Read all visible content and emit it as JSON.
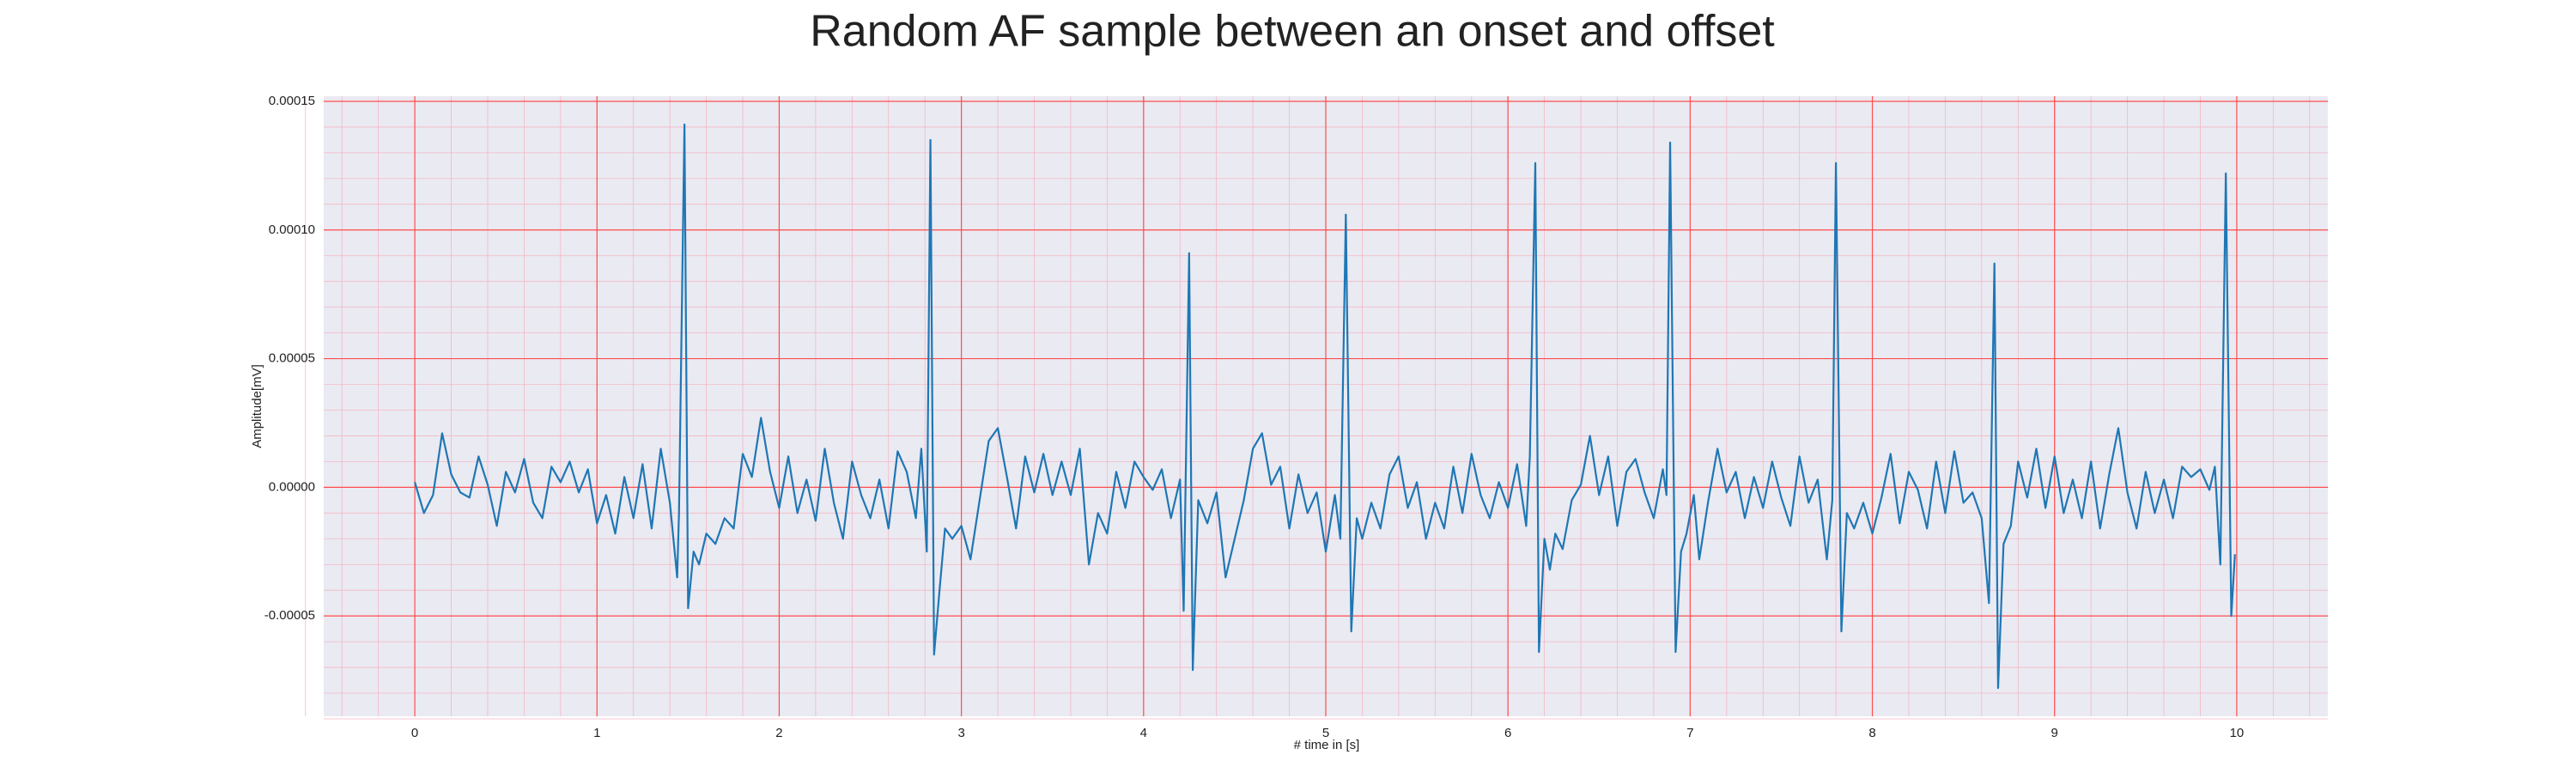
{
  "chart_data": {
    "type": "line",
    "title": "Random AF sample between an onset and offset",
    "xlabel": "# time in [s]",
    "ylabel": "Amplitude[mV]",
    "x": [
      0.0,
      0.05,
      0.1,
      0.15,
      0.2,
      0.25,
      0.3,
      0.35,
      0.4,
      0.45,
      0.5,
      0.55,
      0.6,
      0.65,
      0.7,
      0.75,
      0.8,
      0.85,
      0.9,
      0.95,
      1.0,
      1.05,
      1.1,
      1.15,
      1.2,
      1.25,
      1.3,
      1.35,
      1.4,
      1.44,
      1.45,
      1.48,
      1.5,
      1.53,
      1.56,
      1.6,
      1.65,
      1.7,
      1.75,
      1.8,
      1.85,
      1.9,
      1.95,
      2.0,
      2.05,
      2.1,
      2.15,
      2.2,
      2.25,
      2.3,
      2.35,
      2.4,
      2.45,
      2.5,
      2.55,
      2.6,
      2.65,
      2.7,
      2.75,
      2.78,
      2.81,
      2.83,
      2.85,
      2.88,
      2.91,
      2.95,
      3.0,
      3.05,
      3.1,
      3.15,
      3.2,
      3.25,
      3.3,
      3.35,
      3.4,
      3.45,
      3.5,
      3.55,
      3.6,
      3.65,
      3.7,
      3.75,
      3.8,
      3.85,
      3.9,
      3.95,
      4.0,
      4.05,
      4.1,
      4.15,
      4.2,
      4.22,
      4.25,
      4.27,
      4.3,
      4.35,
      4.4,
      4.45,
      4.5,
      4.55,
      4.6,
      4.65,
      4.7,
      4.75,
      4.8,
      4.85,
      4.9,
      4.95,
      5.0,
      5.05,
      5.08,
      5.11,
      5.14,
      5.17,
      5.2,
      5.25,
      5.3,
      5.35,
      5.4,
      5.45,
      5.5,
      5.55,
      5.6,
      5.65,
      5.7,
      5.75,
      5.8,
      5.85,
      5.9,
      5.95,
      6.0,
      6.05,
      6.1,
      6.12,
      6.15,
      6.17,
      6.2,
      6.23,
      6.26,
      6.3,
      6.35,
      6.4,
      6.45,
      6.5,
      6.55,
      6.6,
      6.65,
      6.7,
      6.75,
      6.8,
      6.85,
      6.87,
      6.89,
      6.92,
      6.95,
      6.98,
      7.02,
      7.05,
      7.1,
      7.15,
      7.2,
      7.25,
      7.3,
      7.35,
      7.4,
      7.45,
      7.5,
      7.55,
      7.6,
      7.65,
      7.7,
      7.75,
      7.78,
      7.8,
      7.83,
      7.86,
      7.9,
      7.95,
      8.0,
      8.05,
      8.1,
      8.15,
      8.2,
      8.25,
      8.3,
      8.35,
      8.4,
      8.45,
      8.5,
      8.55,
      8.6,
      8.64,
      8.67,
      8.69,
      8.72,
      8.76,
      8.8,
      8.85,
      8.9,
      8.95,
      9.0,
      9.05,
      9.1,
      9.15,
      9.2,
      9.25,
      9.3,
      9.35,
      9.4,
      9.45,
      9.5,
      9.55,
      9.6,
      9.65,
      9.7,
      9.75,
      9.8,
      9.85,
      9.88,
      9.91,
      9.94,
      9.97,
      9.99
    ],
    "series": [
      {
        "color": "#1f77b4",
        "values": [
          2e-06,
          -1e-05,
          -3e-06,
          2.1e-05,
          5e-06,
          -2e-06,
          -4e-06,
          1.2e-05,
          1e-06,
          -1.5e-05,
          6e-06,
          -2e-06,
          1.1e-05,
          -6e-06,
          -1.2e-05,
          8e-06,
          2e-06,
          1e-05,
          -2e-06,
          7e-06,
          -1.4e-05,
          -3e-06,
          -1.8e-05,
          4e-06,
          -1.2e-05,
          9e-06,
          -1.6e-05,
          1.5e-05,
          -6e-06,
          -3.5e-05,
          -1e-05,
          0.000141,
          -4.7e-05,
          -2.5e-05,
          -3e-05,
          -1.8e-05,
          -2.2e-05,
          -1.2e-05,
          -1.6e-05,
          1.3e-05,
          4e-06,
          2.7e-05,
          6e-06,
          -8e-06,
          1.2e-05,
          -1e-05,
          3e-06,
          -1.3e-05,
          1.5e-05,
          -6e-06,
          -2e-05,
          1e-05,
          -3e-06,
          -1.2e-05,
          3e-06,
          -1.6e-05,
          1.4e-05,
          6e-06,
          -1.2e-05,
          1.5e-05,
          -2.5e-05,
          0.000135,
          -6.5e-05,
          -4e-05,
          -1.6e-05,
          -2e-05,
          -1.5e-05,
          -2.8e-05,
          -5e-06,
          1.8e-05,
          2.3e-05,
          4e-06,
          -1.6e-05,
          1.2e-05,
          -2e-06,
          1.3e-05,
          -3e-06,
          1e-05,
          -3e-06,
          1.5e-05,
          -3e-05,
          -1e-05,
          -1.8e-05,
          6e-06,
          -8e-06,
          1e-05,
          4e-06,
          -1e-06,
          7e-06,
          -1.2e-05,
          3e-06,
          -4.8e-05,
          9.1e-05,
          -7.1e-05,
          -5e-06,
          -1.4e-05,
          -2e-06,
          -3.5e-05,
          -2e-05,
          -5e-06,
          1.5e-05,
          2.1e-05,
          1e-06,
          8e-06,
          -1.6e-05,
          5e-06,
          -1e-05,
          -2e-06,
          -2.5e-05,
          -3e-06,
          -2e-05,
          0.000106,
          -5.6e-05,
          -1.2e-05,
          -2e-05,
          -6e-06,
          -1.6e-05,
          5e-06,
          1.2e-05,
          -8e-06,
          2e-06,
          -2e-05,
          -6e-06,
          -1.6e-05,
          8e-06,
          -1e-05,
          1.3e-05,
          -3e-06,
          -1.2e-05,
          2e-06,
          -8e-06,
          9e-06,
          -1.5e-05,
          1.2e-05,
          0.000126,
          -6.4e-05,
          -2e-05,
          -3.2e-05,
          -1.8e-05,
          -2.4e-05,
          -5e-06,
          1e-06,
          2e-05,
          -3e-06,
          1.2e-05,
          -1.5e-05,
          6e-06,
          1.1e-05,
          -2e-06,
          -1.2e-05,
          7e-06,
          -3e-06,
          0.000134,
          -6.4e-05,
          -2.5e-05,
          -1.8e-05,
          -3e-06,
          -2.8e-05,
          -5e-06,
          1.5e-05,
          -2e-06,
          6e-06,
          -1.2e-05,
          4e-06,
          -8e-06,
          1e-05,
          -4e-06,
          -1.5e-05,
          1.2e-05,
          -6e-06,
          3e-06,
          -2.8e-05,
          -5e-06,
          0.000126,
          -5.6e-05,
          -1e-05,
          -1.6e-05,
          -6e-06,
          -1.8e-05,
          -4e-06,
          1.3e-05,
          -1.4e-05,
          6e-06,
          -1e-06,
          -1.6e-05,
          1e-05,
          -1e-05,
          1.4e-05,
          -6e-06,
          -2e-06,
          -1.2e-05,
          -4.5e-05,
          8.7e-05,
          -7.8e-05,
          -2.2e-05,
          -1.5e-05,
          1e-05,
          -4e-06,
          1.5e-05,
          -8e-06,
          1.2e-05,
          -1e-05,
          3e-06,
          -1.2e-05,
          1e-05,
          -1.6e-05,
          5e-06,
          2.3e-05,
          -2e-06,
          -1.6e-05,
          6e-06,
          -1e-05,
          3e-06,
          -1.2e-05,
          8e-06,
          4e-06,
          7e-06,
          -1e-06,
          8e-06,
          -3e-05,
          0.000122,
          -5e-05,
          -2.6e-05
        ]
      }
    ],
    "xlim": [
      -0.5,
      10.5
    ],
    "xticks": [
      0,
      1,
      2,
      3,
      4,
      5,
      6,
      7,
      8,
      9,
      10
    ],
    "ylim": [
      -8.9e-05,
      0.000152
    ],
    "yticks": [
      {
        "value": -5e-05,
        "label": "-0.00005"
      },
      {
        "value": 0,
        "label": "0.00000"
      },
      {
        "value": 5e-05,
        "label": "0.00005"
      },
      {
        "value": 0.0001,
        "label": "0.00010"
      },
      {
        "value": 0.00015,
        "label": "0.00015"
      }
    ],
    "grid": true,
    "grid_color": "#ff4d4d",
    "minor_grid": true,
    "minor_grid_color": "#f4b7c4",
    "minor_divisions": 5,
    "background": "#eaeaf2"
  }
}
